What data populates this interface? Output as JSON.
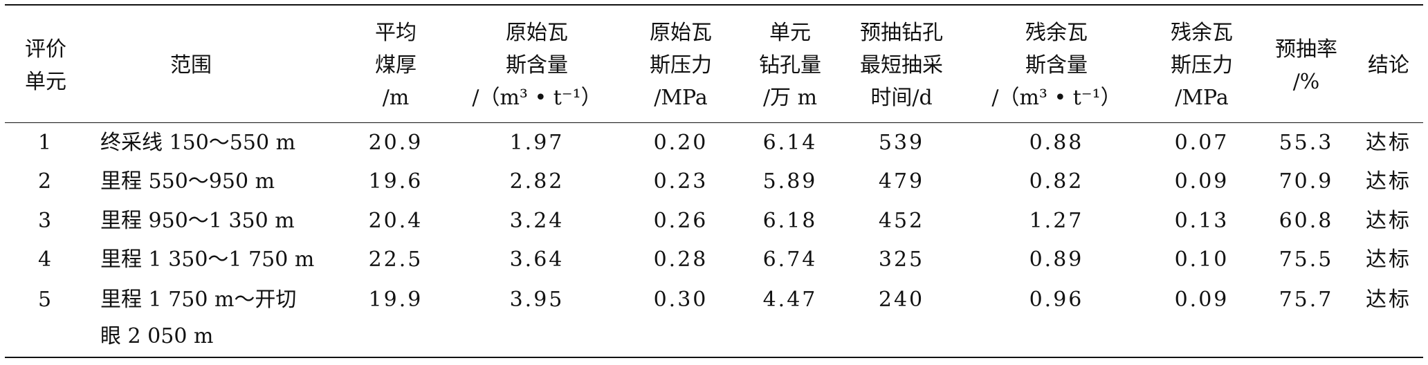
{
  "table": {
    "header": [
      [
        "评价",
        "单元"
      ],
      [
        "范围"
      ],
      [
        "平均",
        "煤厚",
        "/m"
      ],
      [
        "原始瓦",
        "斯含量",
        "/（m³ • t⁻¹）"
      ],
      [
        "原始瓦",
        "斯压力",
        "/MPa"
      ],
      [
        "单元",
        "钻孔量",
        "/万 m"
      ],
      [
        "预抽钻孔",
        "最短抽采",
        "时间/d"
      ],
      [
        "残余瓦",
        "斯含量",
        "/（m³ • t⁻¹）"
      ],
      [
        "残余瓦",
        "斯压力",
        "/MPa"
      ],
      [
        "预抽率",
        "/%"
      ],
      [
        "结论"
      ]
    ],
    "rows": [
      [
        [
          "1"
        ],
        [
          "终采线 150～550 m"
        ],
        [
          "20.9"
        ],
        [
          "1.97"
        ],
        [
          "0.20"
        ],
        [
          "6.14"
        ],
        [
          "539"
        ],
        [
          "0.88"
        ],
        [
          "0.07"
        ],
        [
          "55.3"
        ],
        [
          "达标"
        ]
      ],
      [
        [
          "2"
        ],
        [
          "里程 550～950 m"
        ],
        [
          "19.6"
        ],
        [
          "2.82"
        ],
        [
          "0.23"
        ],
        [
          "5.89"
        ],
        [
          "479"
        ],
        [
          "0.82"
        ],
        [
          "0.09"
        ],
        [
          "70.9"
        ],
        [
          "达标"
        ]
      ],
      [
        [
          "3"
        ],
        [
          "里程 950～1 350 m"
        ],
        [
          "20.4"
        ],
        [
          "3.24"
        ],
        [
          "0.26"
        ],
        [
          "6.18"
        ],
        [
          "452"
        ],
        [
          "1.27"
        ],
        [
          "0.13"
        ],
        [
          "60.8"
        ],
        [
          "达标"
        ]
      ],
      [
        [
          "4"
        ],
        [
          "里程 1 350～1 750 m"
        ],
        [
          "22.5"
        ],
        [
          "3.64"
        ],
        [
          "0.28"
        ],
        [
          "6.74"
        ],
        [
          "325"
        ],
        [
          "0.89"
        ],
        [
          "0.10"
        ],
        [
          "75.5"
        ],
        [
          "达标"
        ]
      ],
      [
        [
          "5"
        ],
        [
          "里程 1 750 m～开切",
          "眼 2 050 m"
        ],
        [
          "19.9"
        ],
        [
          "3.95"
        ],
        [
          "0.30"
        ],
        [
          "4.47"
        ],
        [
          "240"
        ],
        [
          "0.96"
        ],
        [
          "0.09"
        ],
        [
          "75.7"
        ],
        [
          "达标"
        ]
      ]
    ]
  }
}
